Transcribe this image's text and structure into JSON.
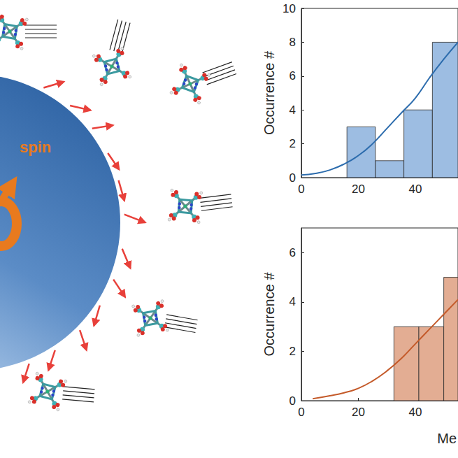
{
  "illustration": {
    "label": "spin"
  },
  "chart_data": [
    {
      "type": "histogram",
      "bins": [
        16,
        26,
        36,
        46,
        56
      ],
      "values": [
        3,
        1,
        4,
        8
      ],
      "color": "#9dbde2",
      "ylabel": "Occurrence #",
      "xlim": [
        0,
        55
      ],
      "xticks": [
        0,
        20,
        40
      ],
      "ylim": [
        0,
        10
      ],
      "yticks": [
        0,
        2,
        4,
        6,
        8,
        10
      ],
      "grid": false,
      "series": [
        {
          "type": "line",
          "color": "#2c6cad",
          "x": [
            0,
            5,
            10,
            15,
            20,
            25,
            30,
            35,
            40,
            45,
            50,
            55
          ],
          "values": [
            0.15,
            0.25,
            0.45,
            0.8,
            1.3,
            2.0,
            2.9,
            3.8,
            4.7,
            5.9,
            7.0,
            8.0
          ]
        }
      ]
    },
    {
      "type": "histogram",
      "bins": [
        32.5,
        41.25,
        50,
        58.75
      ],
      "values": [
        3,
        3,
        5
      ],
      "color": "#e3ad93",
      "ylabel": "Occurrence #",
      "xlabel": "Me",
      "xlim": [
        0,
        55
      ],
      "xticks": [
        0,
        20,
        40
      ],
      "ylim": [
        0,
        7
      ],
      "yticks": [
        0,
        2,
        4,
        6
      ],
      "grid": false,
      "series": [
        {
          "type": "line",
          "color": "#c45a2a",
          "x": [
            4,
            10,
            15,
            20,
            25,
            30,
            35,
            40,
            45,
            50,
            55
          ],
          "values": [
            0.08,
            0.2,
            0.32,
            0.5,
            0.8,
            1.2,
            1.7,
            2.3,
            2.9,
            3.5,
            4.1
          ]
        }
      ]
    }
  ]
}
